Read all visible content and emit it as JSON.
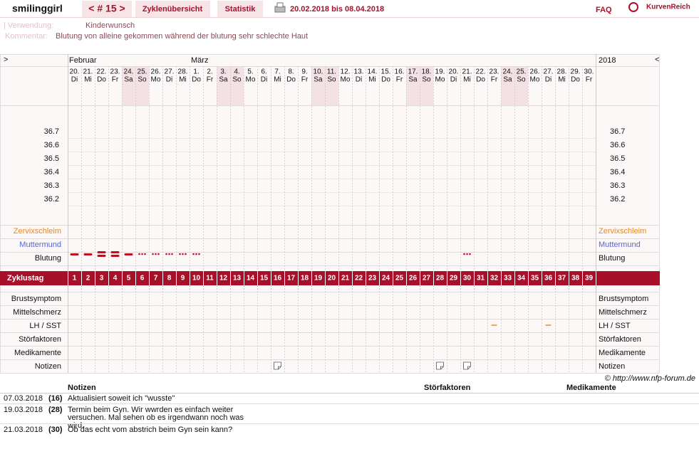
{
  "header": {
    "user": "smilinggirl",
    "cycle_nav": "< # 15 >",
    "tabs": [
      "Zyklenübersicht",
      "Statistik"
    ],
    "date_range": "20.02.2018 bis 08.04.2018",
    "faq": "FAQ",
    "logo": "KurvenReich"
  },
  "info": {
    "usage_label": "| Verwendung:",
    "usage": "Kinderwunsch",
    "comment_label": "Kommentar:",
    "comment": "Blutung von alleine gekommen während der blutung sehr schlechte Haut"
  },
  "chart": {
    "nav_prev": ">",
    "nav_next": "<",
    "year": "2018",
    "months": [
      {
        "name": "Februar",
        "days": [
          {
            "date": "20.",
            "weekday": "Di"
          },
          {
            "date": "21.",
            "weekday": "Mi"
          },
          {
            "date": "22.",
            "weekday": "Do"
          },
          {
            "date": "23.",
            "weekday": "Fr"
          },
          {
            "date": "24.",
            "weekday": "Sa"
          },
          {
            "date": "25.",
            "weekday": "So"
          },
          {
            "date": "26.",
            "weekday": "Mo"
          },
          {
            "date": "27.",
            "weekday": "Di"
          },
          {
            "date": "28.",
            "weekday": "Mi"
          }
        ]
      },
      {
        "name": "März",
        "days": [
          {
            "date": "1.",
            "weekday": "Do"
          },
          {
            "date": "2.",
            "weekday": "Fr"
          },
          {
            "date": "3.",
            "weekday": "Sa"
          },
          {
            "date": "4.",
            "weekday": "So"
          },
          {
            "date": "5.",
            "weekday": "Mo"
          },
          {
            "date": "6.",
            "weekday": "Di"
          },
          {
            "date": "7.",
            "weekday": "Mi"
          },
          {
            "date": "8.",
            "weekday": "Do"
          },
          {
            "date": "9.",
            "weekday": "Fr"
          },
          {
            "date": "10.",
            "weekday": "Sa"
          },
          {
            "date": "11.",
            "weekday": "So"
          },
          {
            "date": "12.",
            "weekday": "Mo"
          },
          {
            "date": "13.",
            "weekday": "Di"
          },
          {
            "date": "14.",
            "weekday": "Mi"
          },
          {
            "date": "15.",
            "weekday": "Do"
          },
          {
            "date": "16.",
            "weekday": "Fr"
          },
          {
            "date": "17.",
            "weekday": "Sa"
          },
          {
            "date": "18.",
            "weekday": "So"
          },
          {
            "date": "19.",
            "weekday": "Mo"
          },
          {
            "date": "20.",
            "weekday": "Di"
          },
          {
            "date": "21.",
            "weekday": "Mi"
          },
          {
            "date": "22.",
            "weekday": "Do"
          },
          {
            "date": "23.",
            "weekday": "Fr"
          },
          {
            "date": "24.",
            "weekday": "Sa"
          },
          {
            "date": "25.",
            "weekday": "So"
          },
          {
            "date": "26.",
            "weekday": "Mo"
          },
          {
            "date": "27.",
            "weekday": "Di"
          },
          {
            "date": "28.",
            "weekday": "Mi"
          },
          {
            "date": "29.",
            "weekday": "Do"
          },
          {
            "date": "30.",
            "weekday": "Fr"
          }
        ]
      }
    ],
    "temp_ticks": [
      36.7,
      36.6,
      36.5,
      36.4,
      36.3,
      36.2
    ],
    "zervix_label": "Zervixschleim",
    "muttermund_label": "Muttermund",
    "blutung_label": "Blutung",
    "bleeding": [
      2,
      2,
      3,
      3,
      2,
      1,
      1,
      1,
      1,
      1,
      null,
      null,
      null,
      null,
      null,
      null,
      null,
      null,
      null,
      null,
      null,
      null,
      null,
      null,
      null,
      null,
      null,
      null,
      null,
      1,
      null,
      null,
      null,
      null,
      null,
      null,
      null,
      null,
      null
    ],
    "cycle_day_label": "Zyklustag",
    "cycle_days": [
      1,
      2,
      3,
      4,
      5,
      6,
      7,
      8,
      9,
      10,
      11,
      12,
      13,
      14,
      15,
      16,
      17,
      18,
      19,
      20,
      21,
      22,
      23,
      24,
      25,
      26,
      27,
      28,
      29,
      30,
      31,
      32,
      33,
      34,
      35,
      36,
      37,
      38,
      39
    ],
    "symptom_rows": [
      "Brustsymptom",
      "Mittelschmerz",
      "LH / SST",
      "Störfaktoren",
      "Medikamente",
      "Notizen"
    ],
    "lh_sst_days": [
      32,
      36
    ],
    "copyright": "© http://www.nfp-forum.de"
  },
  "notes": {
    "headers": [
      "Notizen",
      "Störfaktoren",
      "Medikamente"
    ],
    "entries": [
      {
        "date": "07.03.2018",
        "day": 16,
        "day_label": "(16)",
        "text": "Aktualisiert soweit ich \"wusste\""
      },
      {
        "date": "19.03.2018",
        "day": 28,
        "day_label": "(28)",
        "text": "Termin beim Gyn. Wir wwrden es einfach weiter versuchen. Mal sehen ob es irgendwann noch was wird."
      },
      {
        "date": "21.03.2018",
        "day": 30,
        "day_label": "(30)",
        "text": "Ob das echt vom abstrich beim Gyn sein kann?"
      }
    ]
  }
}
